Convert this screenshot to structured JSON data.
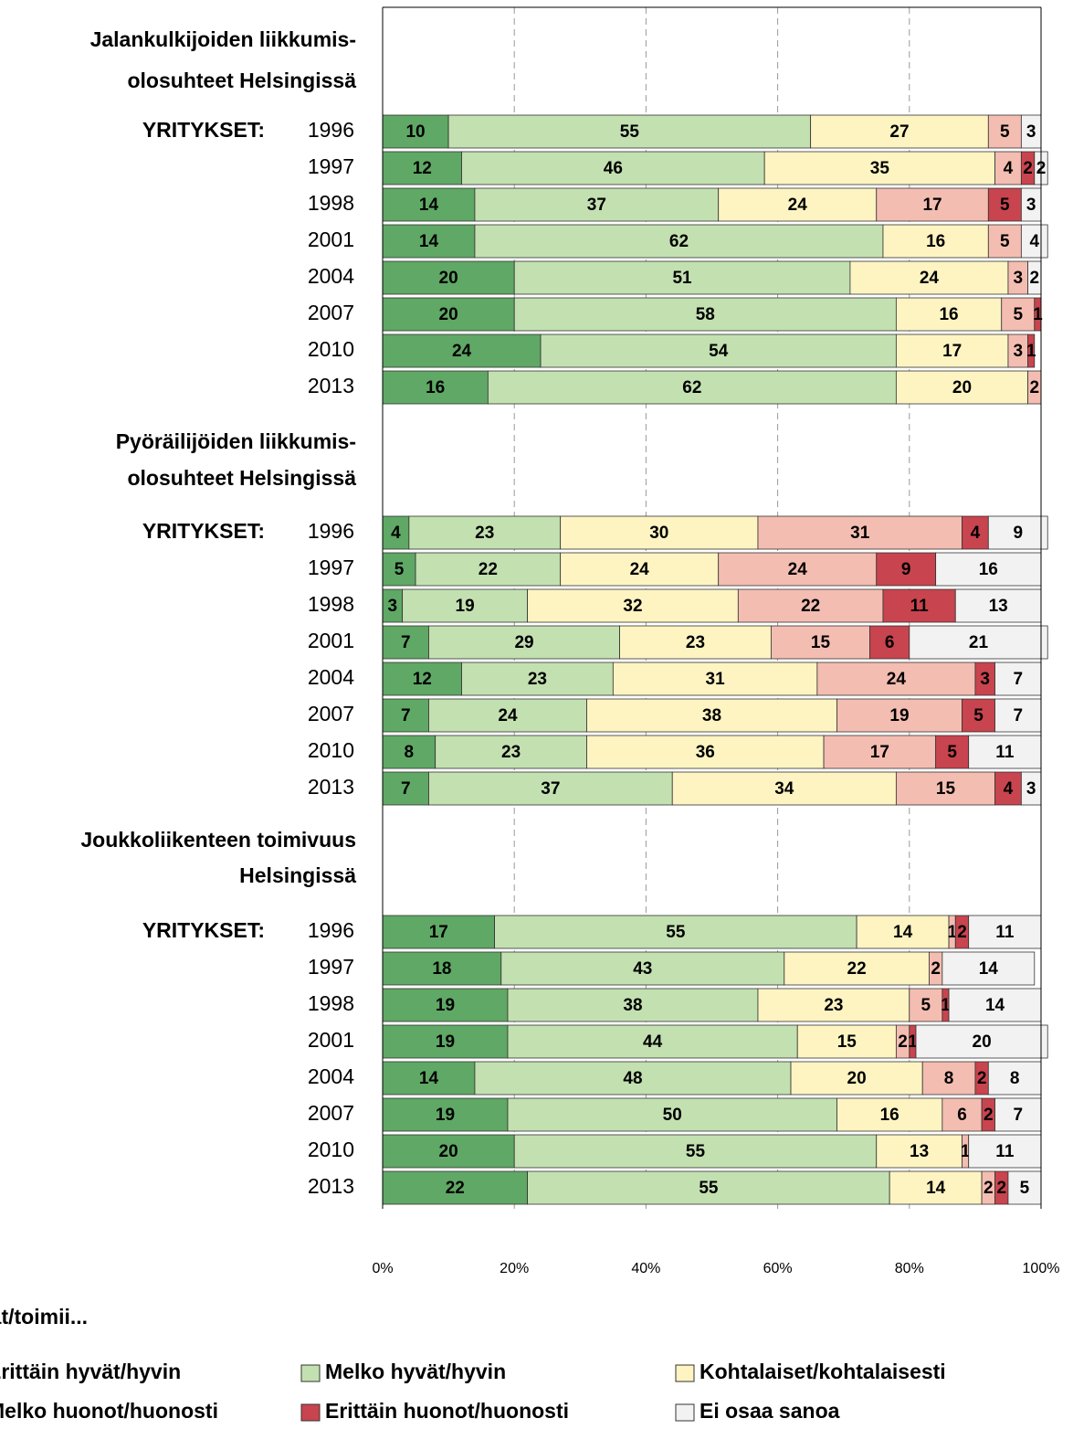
{
  "chart_data": {
    "type": "bar",
    "orientation": "horizontal",
    "stacked": true,
    "xlim": [
      0,
      100
    ],
    "xticks": [
      {
        "value": 0,
        "label": "0%"
      },
      {
        "value": 20,
        "label": "20%"
      },
      {
        "value": 40,
        "label": "40%"
      },
      {
        "value": 60,
        "label": "60%"
      },
      {
        "value": 80,
        "label": "80%"
      },
      {
        "value": 100,
        "label": "100%"
      }
    ],
    "grid": true,
    "legend_title": "Ovat/toimii...",
    "series": [
      {
        "name": "Erittäin hyvät/hyvin",
        "color": "#5fa865"
      },
      {
        "name": "Melko hyvät/hyvin",
        "color": "#c3e0b1"
      },
      {
        "name": "Kohtalaiset/kohtalaisesti",
        "color": "#fdf4c2"
      },
      {
        "name": "Melko huonot/huonosti",
        "color": "#f4bdb1"
      },
      {
        "name": "Erittäin huonot/huonosti",
        "color": "#c8444e"
      },
      {
        "name": "Ei osaa sanoa",
        "color": "#f2f2f2"
      }
    ],
    "groups": [
      {
        "title": [
          "Jalankulkijoiden liikkumis-",
          "olosuhteet Helsingissä"
        ],
        "label": "YRITYKSET:",
        "categories": [
          "1996",
          "1997",
          "1998",
          "2001",
          "2004",
          "2007",
          "2010",
          "2013"
        ],
        "values": [
          [
            10,
            12,
            14,
            14,
            20,
            20,
            24,
            16
          ],
          [
            55,
            46,
            37,
            62,
            51,
            58,
            54,
            62
          ],
          [
            27,
            35,
            24,
            16,
            24,
            16,
            17,
            20
          ],
          [
            5,
            4,
            17,
            5,
            3,
            5,
            3,
            2
          ],
          [
            null,
            2,
            5,
            null,
            null,
            1,
            1,
            null
          ],
          [
            3,
            2,
            3,
            4,
            2,
            null,
            null,
            null
          ]
        ]
      },
      {
        "title": [
          "Pyöräilijöiden liikkumis-",
          "olosuhteet Helsingissä"
        ],
        "label": "YRITYKSET:",
        "categories": [
          "1996",
          "1997",
          "1998",
          "2001",
          "2004",
          "2007",
          "2010",
          "2013"
        ],
        "values": [
          [
            4,
            5,
            3,
            7,
            12,
            7,
            8,
            7
          ],
          [
            23,
            22,
            19,
            29,
            23,
            24,
            23,
            37
          ],
          [
            30,
            24,
            32,
            23,
            31,
            38,
            36,
            34
          ],
          [
            31,
            24,
            22,
            15,
            24,
            19,
            17,
            15
          ],
          [
            4,
            9,
            11,
            6,
            3,
            5,
            5,
            4
          ],
          [
            9,
            16,
            13,
            21,
            7,
            7,
            11,
            3
          ]
        ]
      },
      {
        "title": [
          "Joukkoliikenteen toimivuus",
          "Helsingissä"
        ],
        "label": "YRITYKSET:",
        "categories": [
          "1996",
          "1997",
          "1998",
          "2001",
          "2004",
          "2007",
          "2010",
          "2013"
        ],
        "values": [
          [
            17,
            18,
            19,
            19,
            14,
            19,
            20,
            22
          ],
          [
            55,
            43,
            38,
            44,
            48,
            50,
            55,
            55
          ],
          [
            14,
            22,
            23,
            15,
            20,
            16,
            13,
            14
          ],
          [
            1,
            2,
            5,
            2,
            8,
            6,
            1,
            2
          ],
          [
            2,
            null,
            1,
            1,
            2,
            2,
            null,
            2
          ],
          [
            11,
            14,
            14,
            20,
            8,
            7,
            11,
            5
          ]
        ]
      }
    ]
  }
}
